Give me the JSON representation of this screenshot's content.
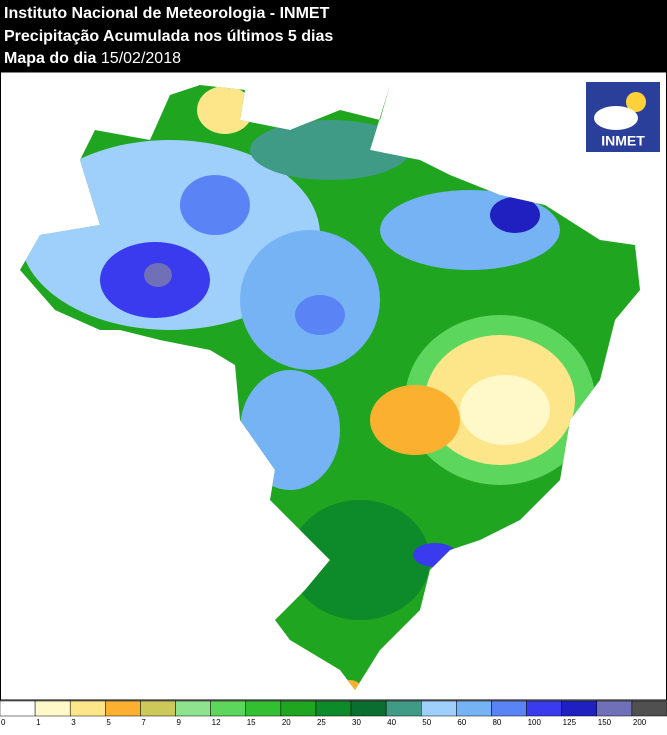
{
  "header": {
    "title": "Instituto Nacional de Meteorologia - INMET",
    "subtitle": "Precipitação Acumulada nos últimos 5 dias",
    "date_label": "Mapa do dia",
    "date": "15/02/2018"
  },
  "logo": {
    "text": "INMET"
  },
  "legend": {
    "entries": [
      {
        "label": "0",
        "color": "#ffffff"
      },
      {
        "label": "1",
        "color": "#fff8c8"
      },
      {
        "label": "3",
        "color": "#fde58a"
      },
      {
        "label": "5",
        "color": "#fcb030"
      },
      {
        "label": "7",
        "color": "#ccc85a"
      },
      {
        "label": "9",
        "color": "#8fe38f"
      },
      {
        "label": "12",
        "color": "#5cd65c"
      },
      {
        "label": "15",
        "color": "#32c032"
      },
      {
        "label": "20",
        "color": "#1fa51f"
      },
      {
        "label": "25",
        "color": "#0d8a2a"
      },
      {
        "label": "30",
        "color": "#0a6e30"
      },
      {
        "label": "40",
        "color": "#3f9a86"
      },
      {
        "label": "50",
        "color": "#9fd0fc"
      },
      {
        "label": "60",
        "color": "#75b3f5"
      },
      {
        "label": "80",
        "color": "#5a84f5"
      },
      {
        "label": "100",
        "color": "#3a3aee"
      },
      {
        "label": "125",
        "color": "#2020c0"
      },
      {
        "label": "150",
        "color": "#7070b8"
      },
      {
        "label": "200",
        "color": "#505050"
      }
    ]
  }
}
